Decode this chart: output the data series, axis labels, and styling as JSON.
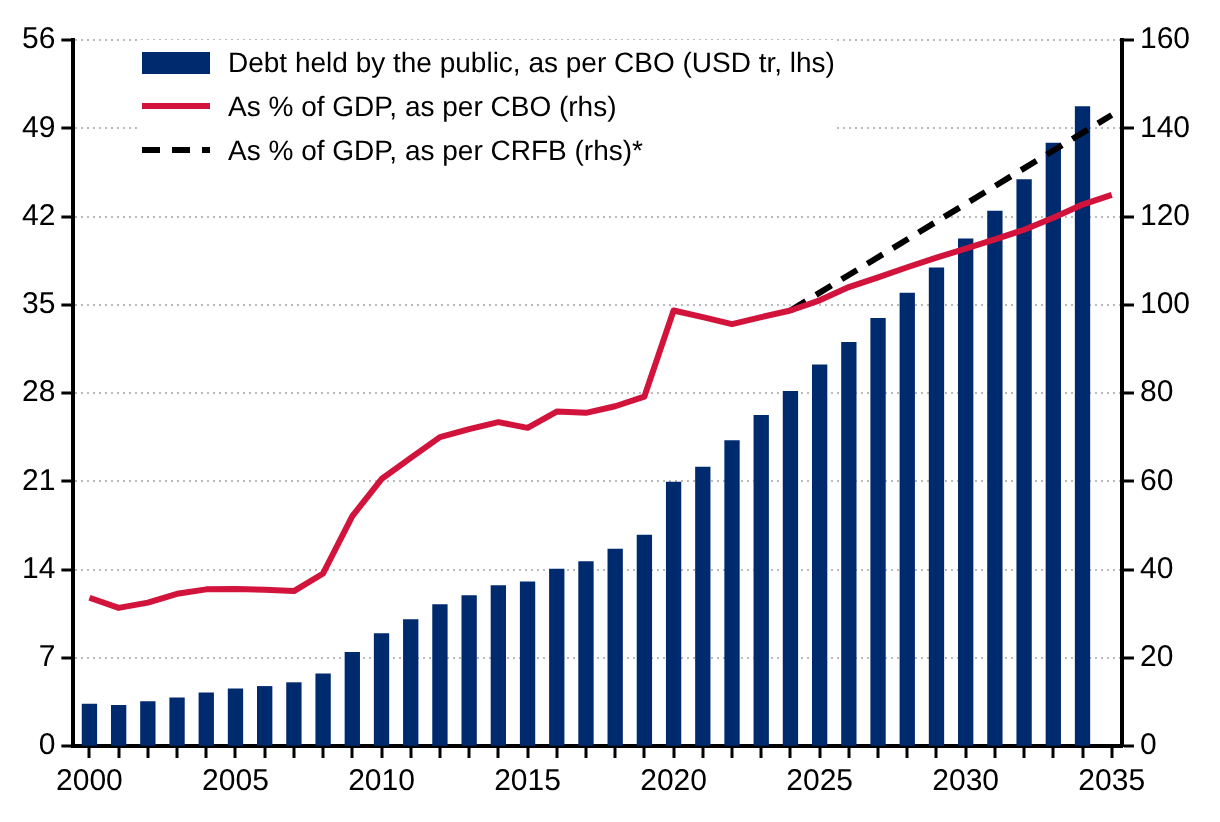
{
  "chart_data": {
    "type": "bar",
    "x": [
      2000,
      2001,
      2002,
      2003,
      2004,
      2005,
      2006,
      2007,
      2008,
      2009,
      2010,
      2011,
      2012,
      2013,
      2014,
      2015,
      2016,
      2017,
      2018,
      2019,
      2020,
      2021,
      2022,
      2023,
      2024,
      2025,
      2026,
      2027,
      2028,
      2029,
      2030,
      2031,
      2032,
      2033,
      2034
    ],
    "series": [
      {
        "name": "Debt held by the public, as per CBO (USD tr, lhs)",
        "color": "#002a6e",
        "values": [
          3.3,
          3.2,
          3.5,
          3.8,
          4.2,
          4.5,
          4.7,
          5.0,
          5.7,
          7.4,
          8.9,
          10.0,
          11.2,
          11.9,
          12.7,
          13.0,
          14.0,
          14.6,
          15.6,
          16.7,
          20.9,
          22.1,
          24.2,
          26.2,
          28.1,
          30.2,
          32.0,
          33.9,
          35.9,
          37.9,
          40.2,
          42.4,
          44.9,
          47.8,
          50.7
        ]
      },
      {
        "name": "As % of GDP, as per CBO (rhs)",
        "type": "line",
        "axis": "y2",
        "color": "#d2133b",
        "line_style": "solid",
        "x": [
          2000,
          2001,
          2002,
          2003,
          2004,
          2005,
          2006,
          2007,
          2008,
          2009,
          2010,
          2011,
          2012,
          2013,
          2014,
          2015,
          2016,
          2017,
          2018,
          2019,
          2020,
          2021,
          2022,
          2023,
          2024,
          2025,
          2026,
          2027,
          2028,
          2029,
          2030,
          2031,
          2032,
          2033,
          2034,
          2035
        ],
        "values": [
          33.6,
          31.3,
          32.5,
          34.5,
          35.5,
          35.6,
          35.4,
          35.1,
          39.1,
          52.1,
          60.5,
          65.3,
          70.0,
          71.8,
          73.4,
          72.1,
          75.8,
          75.5,
          77.0,
          79.2,
          98.7,
          97.2,
          95.6,
          97.2,
          98.7,
          101.0,
          104.0,
          106.2,
          108.5,
          110.7,
          112.7,
          114.8,
          117.0,
          119.7,
          122.7,
          124.9
        ]
      },
      {
        "name": "As % of GDP, as per CRFB (rhs)*",
        "type": "line",
        "axis": "y2",
        "color": "#000000",
        "line_style": "dashed",
        "x": [
          2024,
          2035
        ],
        "values": [
          98.7,
          143
        ]
      }
    ],
    "xlim": [
      1999.45,
      2035.35
    ],
    "xticks": [
      2000,
      {
        "value": 2001,
        "label": null
      },
      {
        "value": 2002,
        "label": null
      },
      {
        "value": 2003,
        "label": null
      },
      {
        "value": 2004,
        "label": null
      },
      2005,
      {
        "value": 2006,
        "label": null
      },
      {
        "value": 2007,
        "label": null
      },
      {
        "value": 2008,
        "label": null
      },
      {
        "value": 2009,
        "label": null
      },
      2010,
      {
        "value": 2011,
        "label": null
      },
      {
        "value": 2012,
        "label": null
      },
      {
        "value": 2013,
        "label": null
      },
      {
        "value": 2014,
        "label": null
      },
      2015,
      {
        "value": 2016,
        "label": null
      },
      {
        "value": 2017,
        "label": null
      },
      {
        "value": 2018,
        "label": null
      },
      {
        "value": 2019,
        "label": null
      },
      2020,
      {
        "value": 2021,
        "label": null
      },
      {
        "value": 2022,
        "label": null
      },
      {
        "value": 2023,
        "label": null
      },
      {
        "value": 2024,
        "label": null
      },
      2025,
      {
        "value": 2026,
        "label": null
      },
      {
        "value": 2027,
        "label": null
      },
      {
        "value": 2028,
        "label": null
      },
      {
        "value": 2029,
        "label": null
      },
      2030,
      {
        "value": 2031,
        "label": null
      },
      {
        "value": 2032,
        "label": null
      },
      {
        "value": 2033,
        "label": null
      },
      {
        "value": 2034,
        "label": null
      },
      2035
    ],
    "ylim": [
      0,
      56
    ],
    "yticks": [
      0,
      7,
      14,
      21,
      28,
      35,
      42,
      49,
      56
    ],
    "y2lim": [
      0,
      160
    ],
    "y2ticks": [
      0,
      20,
      40,
      60,
      80,
      100,
      120,
      140,
      160
    ],
    "grid": "y",
    "legend": "top left",
    "marker": "none"
  }
}
